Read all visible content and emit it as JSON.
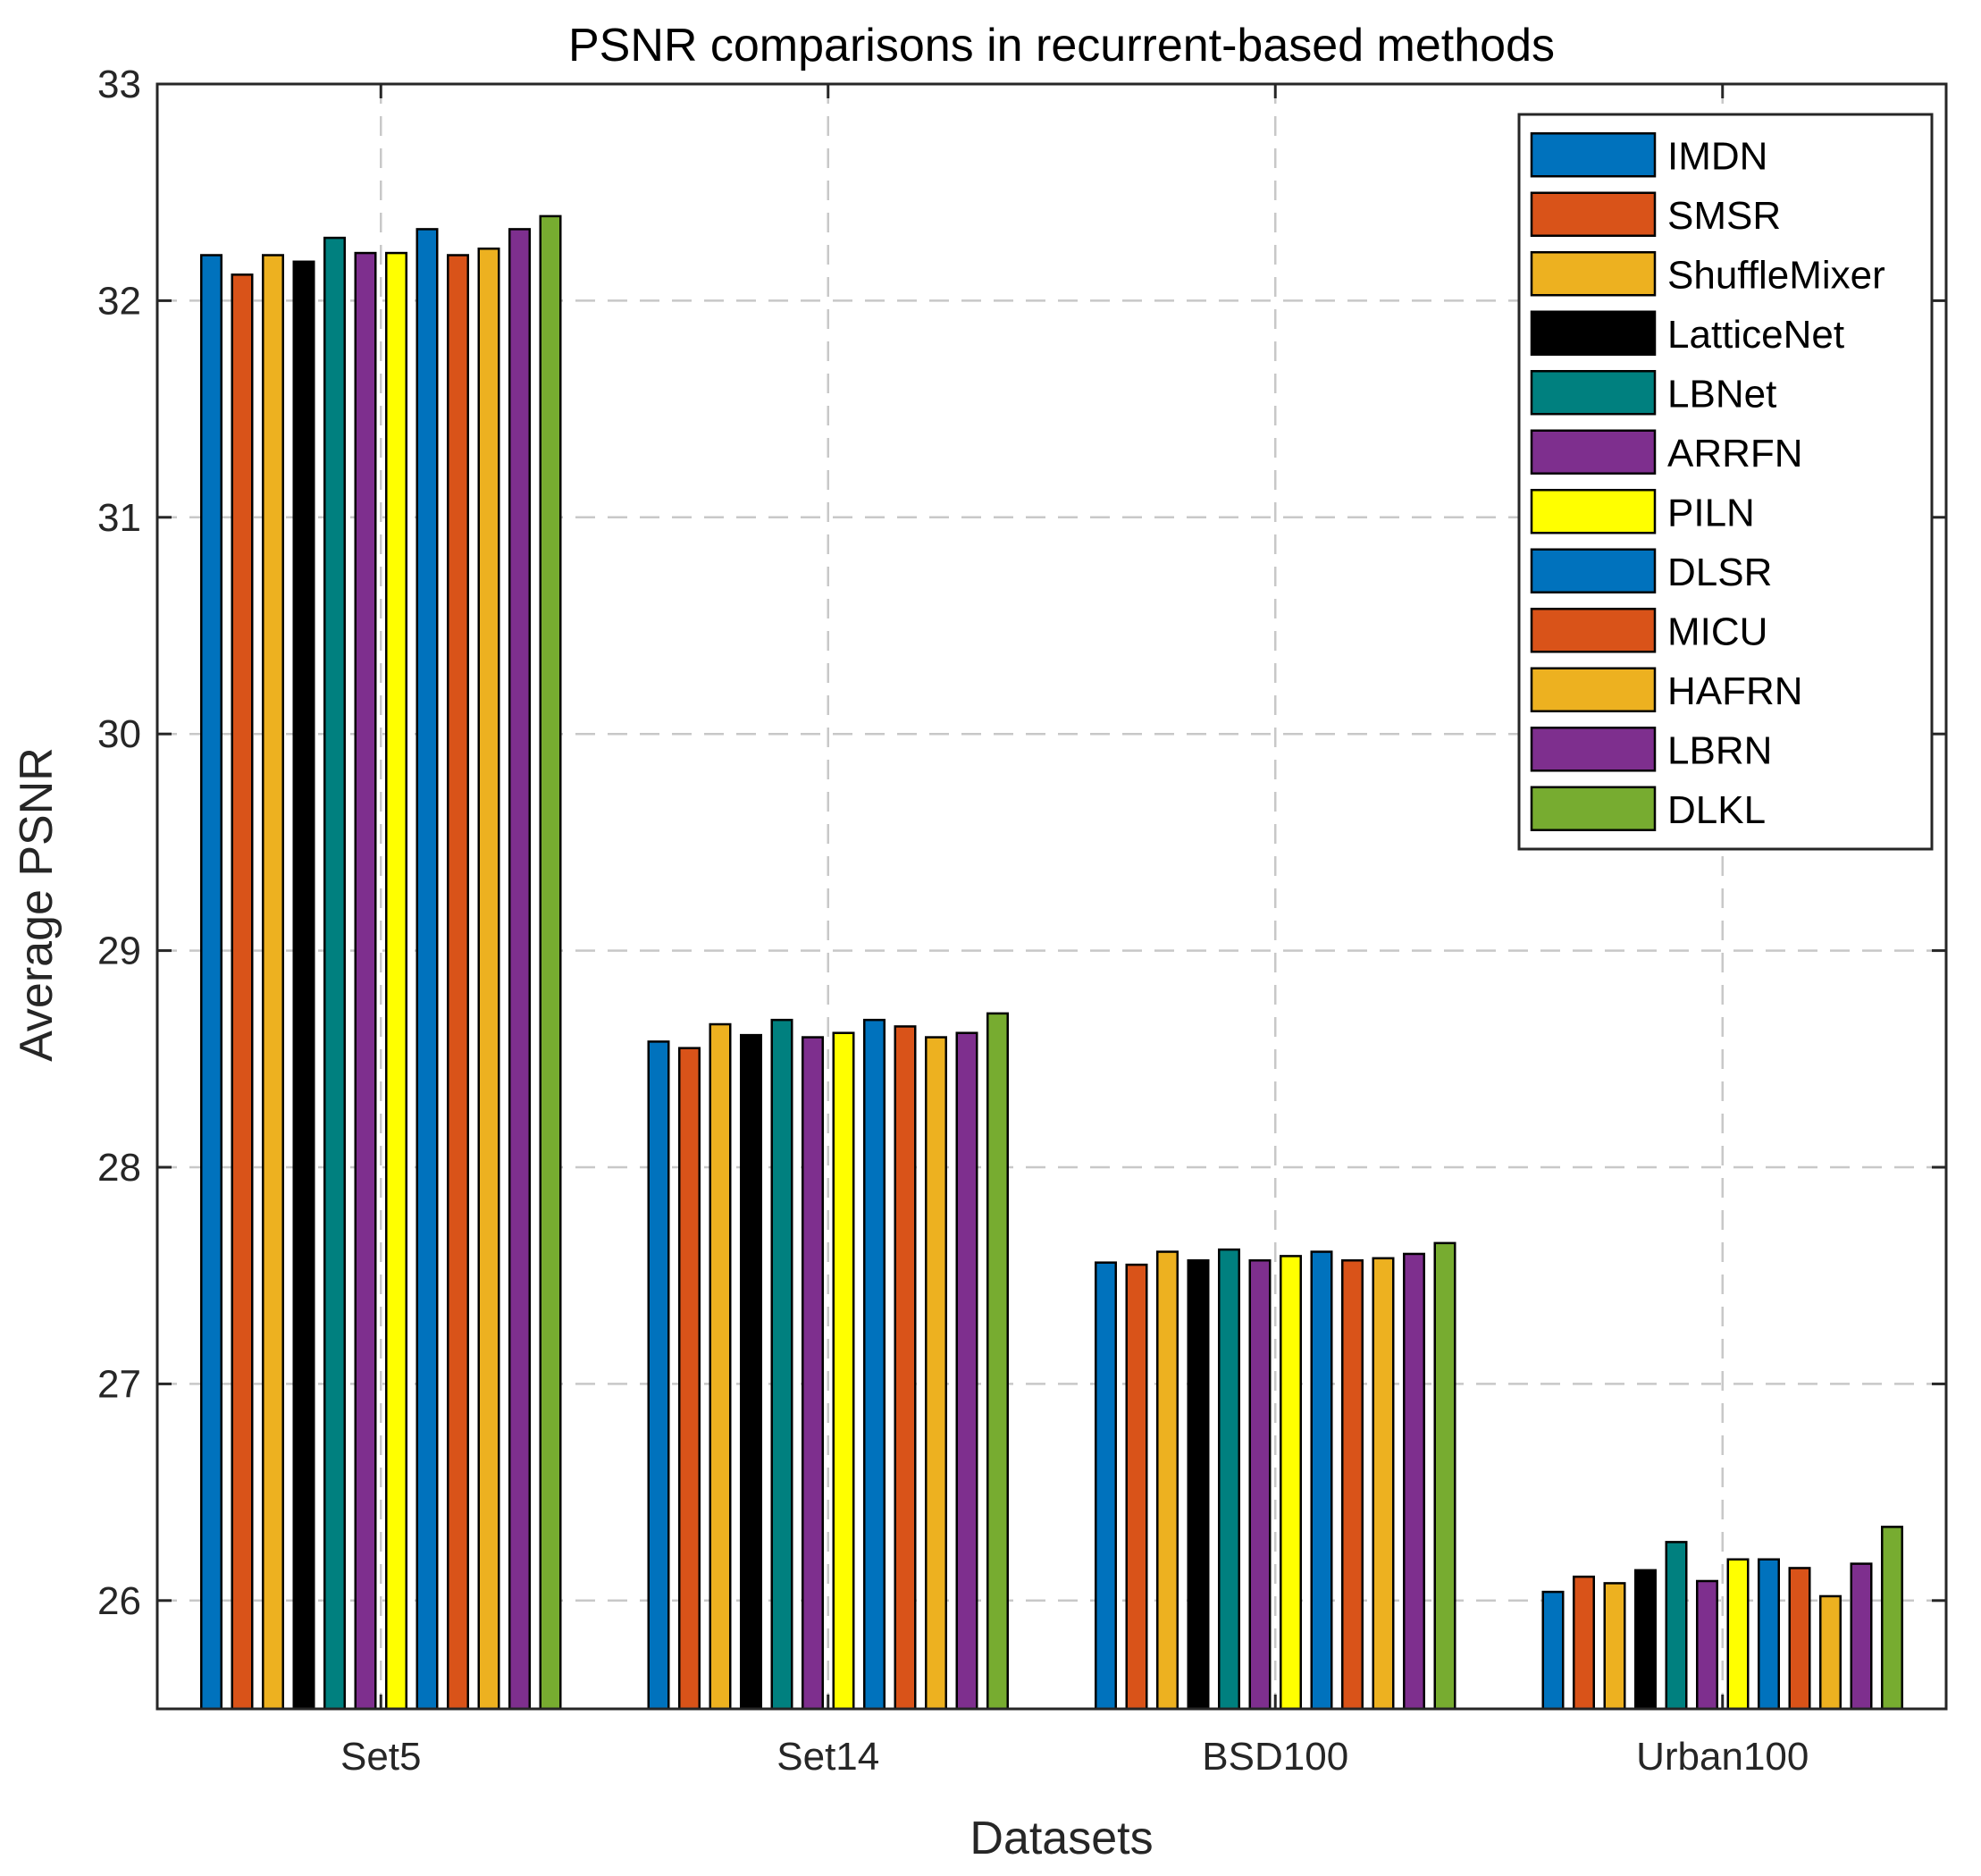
{
  "chart_data": {
    "type": "bar",
    "title": "PSNR comparisons in recurrent-based methods",
    "xlabel": "Datasets",
    "ylabel": "Average PSNR",
    "ylim": [
      25.5,
      33
    ],
    "yticks": [
      26,
      27,
      28,
      29,
      30,
      31,
      32,
      33
    ],
    "grid": true,
    "legend_position": "top-right",
    "categories": [
      "Set5",
      "Set14",
      "BSD100",
      "Urban100"
    ],
    "series": [
      {
        "name": "IMDN",
        "color": "#0072BD",
        "values": [
          32.21,
          28.58,
          27.56,
          26.04
        ]
      },
      {
        "name": "SMSR",
        "color": "#D95319",
        "values": [
          32.12,
          28.55,
          27.55,
          26.11
        ]
      },
      {
        "name": "ShuffleMixer",
        "color": "#EDB120",
        "values": [
          32.21,
          28.66,
          27.61,
          26.08
        ]
      },
      {
        "name": "LatticeNet",
        "color": "#000000",
        "values": [
          32.18,
          28.61,
          27.57,
          26.14
        ]
      },
      {
        "name": "LBNet",
        "color": "#00807F",
        "values": [
          32.29,
          28.68,
          27.62,
          26.27
        ]
      },
      {
        "name": "ARRFN",
        "color": "#7E2F8E",
        "values": [
          32.22,
          28.6,
          27.57,
          26.09
        ]
      },
      {
        "name": "PILN",
        "color": "#FFFF00",
        "values": [
          32.22,
          28.62,
          27.59,
          26.19
        ]
      },
      {
        "name": "DLSR",
        "color": "#0072BD",
        "values": [
          32.33,
          28.68,
          27.61,
          26.19
        ]
      },
      {
        "name": "MICU",
        "color": "#D95319",
        "values": [
          32.21,
          28.65,
          27.57,
          26.15
        ]
      },
      {
        "name": "HAFRN",
        "color": "#EDB120",
        "values": [
          32.24,
          28.6,
          27.58,
          26.02
        ]
      },
      {
        "name": "LBRN",
        "color": "#7E2F8E",
        "values": [
          32.33,
          28.62,
          27.6,
          26.17
        ]
      },
      {
        "name": "DLKL",
        "color": "#77AC30",
        "values": [
          32.39,
          28.71,
          27.65,
          26.34
        ]
      }
    ]
  }
}
